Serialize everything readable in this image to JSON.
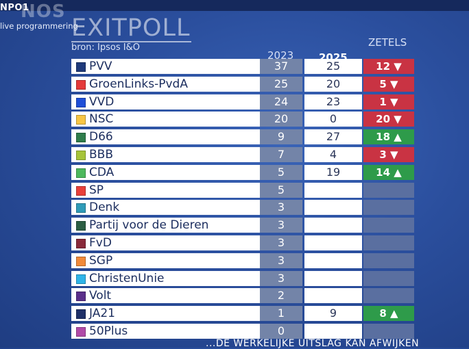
{
  "broadcast": {
    "channel": "NPO1",
    "logo": "NOS",
    "status": "live programmering"
  },
  "header": {
    "title": "EXITPOLL",
    "source": "bron: Ipsos I&O",
    "col_2023": "2023",
    "col_2025": "2025",
    "col_seats": "ZETELS"
  },
  "parties": [
    {
      "name": "PVV",
      "color": "#1f3a7a",
      "y2023": "37",
      "y2025": "25",
      "change": "12",
      "dir": "down"
    },
    {
      "name": "GroenLinks-PvdA",
      "color": "#e53a3a",
      "y2023": "25",
      "y2025": "20",
      "change": "5",
      "dir": "down"
    },
    {
      "name": "VVD",
      "color": "#1f4fd8",
      "y2023": "24",
      "y2025": "23",
      "change": "1",
      "dir": "down"
    },
    {
      "name": "NSC",
      "color": "#f7c544",
      "y2023": "20",
      "y2025": "0",
      "change": "20",
      "dir": "down"
    },
    {
      "name": "D66",
      "color": "#2f7d4b",
      "y2023": "9",
      "y2025": "27",
      "change": "18",
      "dir": "up"
    },
    {
      "name": "BBB",
      "color": "#a6c43a",
      "y2023": "7",
      "y2025": "4",
      "change": "3",
      "dir": "down"
    },
    {
      "name": "CDA",
      "color": "#4cb85c",
      "y2023": "5",
      "y2025": "19",
      "change": "14",
      "dir": "up"
    },
    {
      "name": "SP",
      "color": "#e8403a",
      "y2023": "5",
      "y2025": "",
      "change": "",
      "dir": ""
    },
    {
      "name": "Denk",
      "color": "#2f9bb8",
      "y2023": "3",
      "y2025": "",
      "change": "",
      "dir": ""
    },
    {
      "name": "Partij voor de Dieren",
      "color": "#2c5e43",
      "y2023": "3",
      "y2025": "",
      "change": "",
      "dir": ""
    },
    {
      "name": "FvD",
      "color": "#8a2a3a",
      "y2023": "3",
      "y2025": "",
      "change": "",
      "dir": ""
    },
    {
      "name": "SGP",
      "color": "#f08a3a",
      "y2023": "3",
      "y2025": "",
      "change": "",
      "dir": ""
    },
    {
      "name": "ChristenUnie",
      "color": "#2fb4e8",
      "y2023": "3",
      "y2025": "",
      "change": "",
      "dir": ""
    },
    {
      "name": "Volt",
      "color": "#5a2f8a",
      "y2023": "2",
      "y2025": "",
      "change": "",
      "dir": ""
    },
    {
      "name": "JA21",
      "color": "#1f3068",
      "y2023": "1",
      "y2025": "9",
      "change": "8",
      "dir": "up"
    },
    {
      "name": "50Plus",
      "color": "#b04aa8",
      "y2023": "0",
      "y2025": "",
      "change": "",
      "dir": ""
    }
  ],
  "ticker": "...DE WERKELIJKE UITSLAG KAN AFWIJKEN"
}
